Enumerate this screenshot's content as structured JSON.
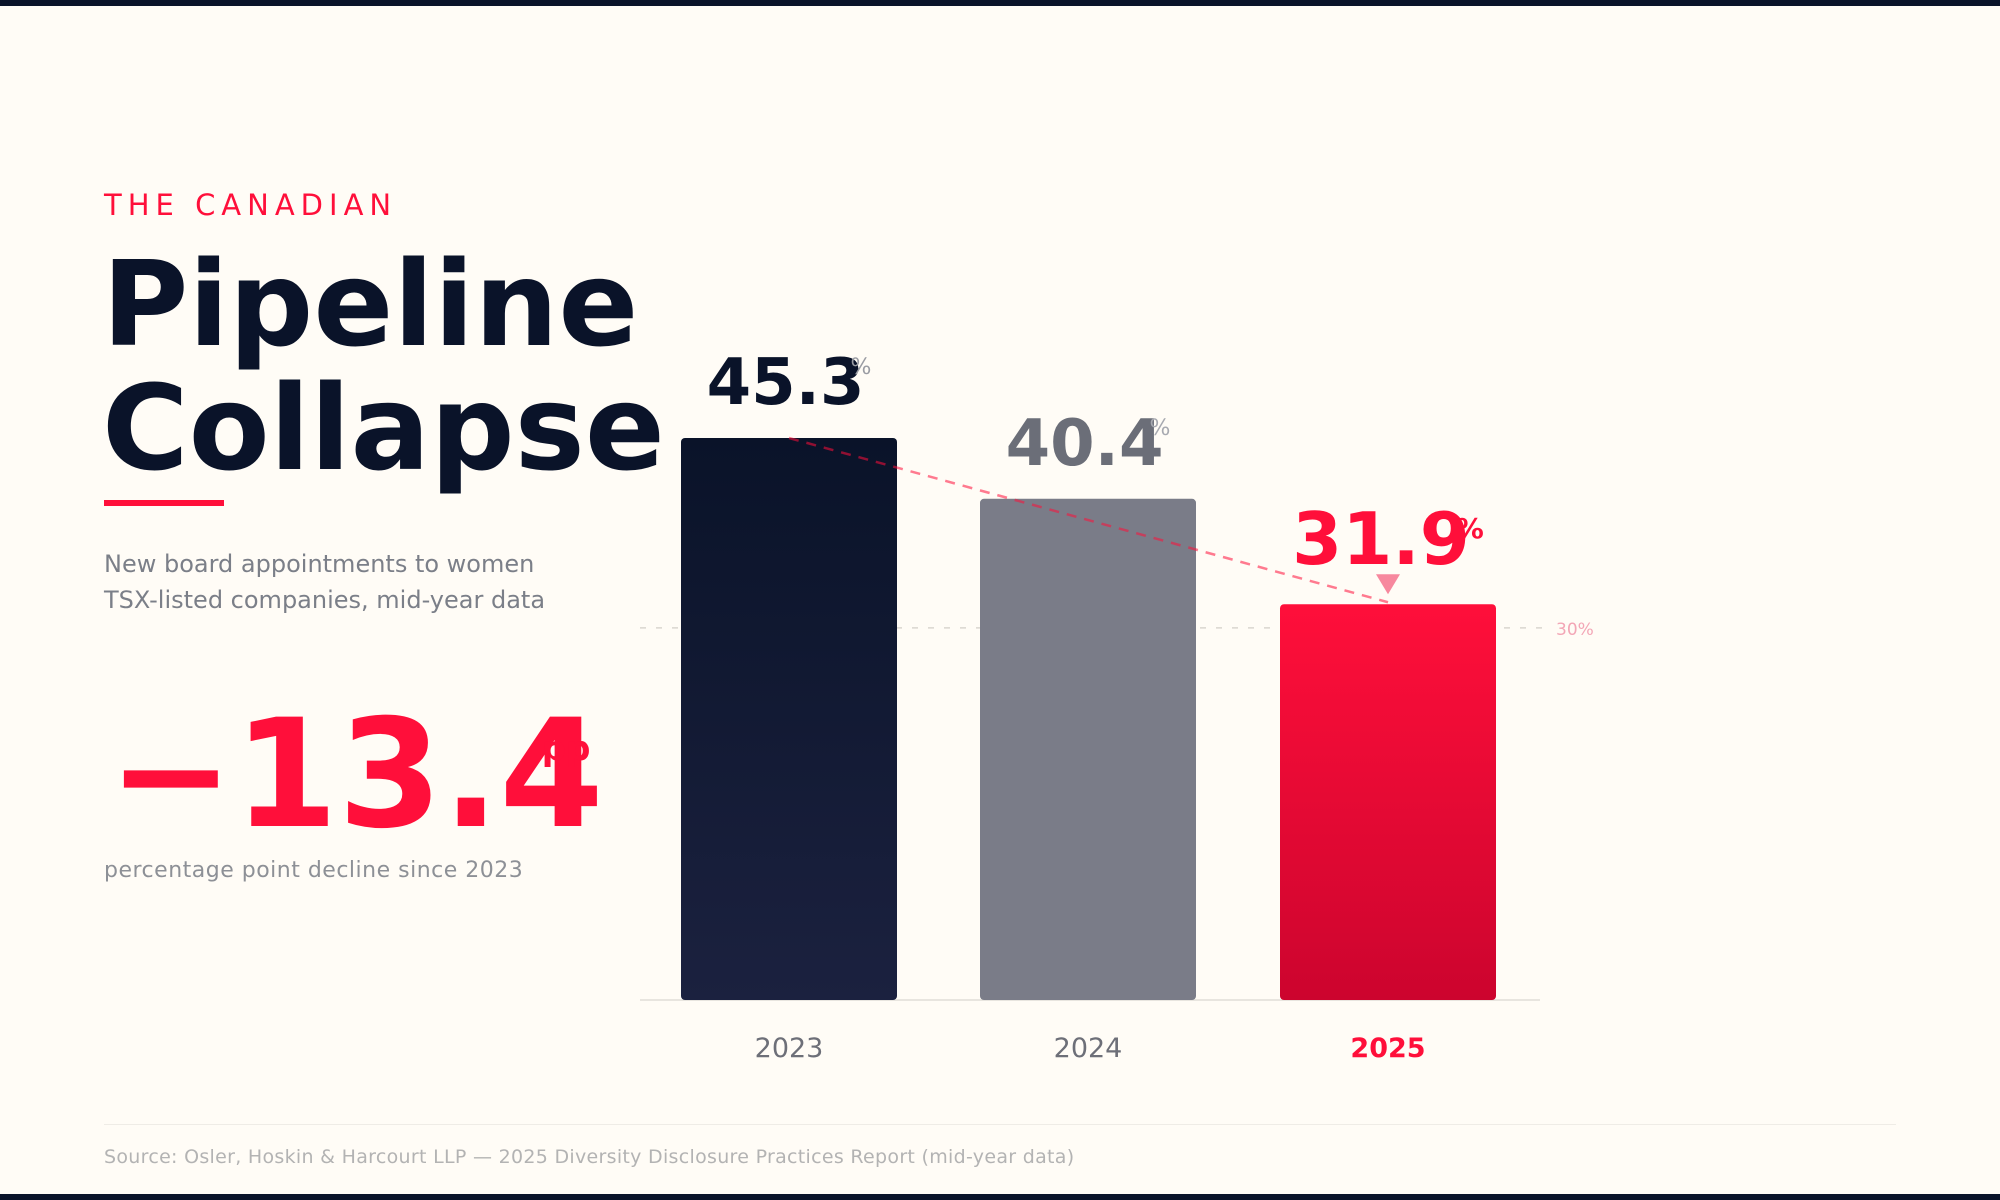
{
  "header": {
    "eyebrow": "THE CANADIAN",
    "title_line1": "Pipeline",
    "title_line2": "Collapse",
    "subtitle_line1": "New board appointments to women",
    "subtitle_line2": "TSX-listed companies, mid-year data"
  },
  "stat": {
    "value": "−13.4",
    "suffix": "pp",
    "caption": "percentage point decline since 2023"
  },
  "source": "Source: Osler, Hoskin & Harcourt LLP — 2025 Diversity Disclosure Practices Report (mid-year data)",
  "colors": {
    "accent": "#ff0f3a",
    "navy": "#0a1329",
    "gray": "#7a7c88",
    "background": "#fffcf6"
  },
  "chart_data": {
    "type": "bar",
    "categories": [
      "2023",
      "2024",
      "2025"
    ],
    "values": [
      45.3,
      40.4,
      31.9
    ],
    "value_suffix": "%",
    "bar_colors": [
      "#0a1329",
      "#7a7c88",
      "#ff0f3a"
    ],
    "highlight_category": "2025",
    "reference_line": {
      "value": 30,
      "label": "30%"
    },
    "trend_line": "dashed",
    "decline_marker": "down-triangle-icon",
    "ylim": [
      0,
      56
    ]
  }
}
